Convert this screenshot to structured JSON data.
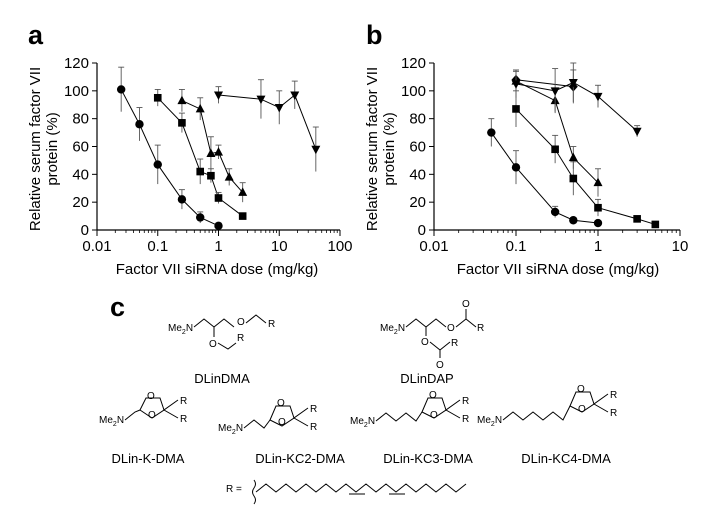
{
  "figure": {
    "panel_letters": [
      "a",
      "b",
      "c"
    ]
  },
  "chart_data": [
    {
      "type": "scatter",
      "panel": "a",
      "xlabel": "Factor VII siRNA dose (mg/kg)",
      "ylabel": "Relative serum factor VII protein (%)",
      "ylabel_lines": [
        "Relative serum factor VII",
        "protein (%)"
      ],
      "xscale": "log",
      "xlim": [
        0.01,
        100
      ],
      "ylim": [
        0,
        120
      ],
      "x_ticks": [
        0.01,
        0.1,
        1,
        10,
        100
      ],
      "x_tick_labels": [
        "0.01",
        "0.1",
        "1",
        "10",
        "100"
      ],
      "y_ticks": [
        0,
        20,
        40,
        60,
        80,
        100,
        120
      ],
      "y_tick_labels": [
        "0",
        "20",
        "40",
        "60",
        "80",
        "100",
        "120"
      ],
      "grid": false,
      "series": [
        {
          "marker": "circle",
          "x": [
            0.025,
            0.05,
            0.1,
            0.25,
            0.5,
            1.0
          ],
          "y": [
            101,
            76,
            47,
            22,
            9,
            3
          ],
          "err": [
            16,
            12,
            14,
            7,
            4,
            2
          ]
        },
        {
          "marker": "square",
          "x": [
            0.1,
            0.25,
            0.5,
            0.75,
            1.0,
            2.5
          ],
          "y": [
            95,
            77,
            42,
            39,
            23,
            10
          ],
          "err": [
            6,
            7,
            9,
            5,
            4,
            2
          ]
        },
        {
          "marker": "triangle-up",
          "x": [
            0.25,
            0.5,
            0.75,
            1.0,
            1.5,
            2.5
          ],
          "y": [
            93,
            87,
            55,
            56,
            38,
            27
          ],
          "err": [
            8,
            8,
            12,
            5,
            6,
            7
          ]
        },
        {
          "marker": "triangle-down",
          "x": [
            1.0,
            5.0,
            10.0,
            18.0,
            40.0
          ],
          "y": [
            97,
            94,
            88,
            97,
            58
          ],
          "err": [
            6,
            14,
            12,
            10,
            16
          ]
        }
      ]
    },
    {
      "type": "scatter",
      "panel": "b",
      "xlabel": "Factor VII siRNA dose (mg/kg)",
      "ylabel": "Relative serum factor VII protein (%)",
      "ylabel_lines": [
        "Relative serum factor VII",
        "protein (%)"
      ],
      "xscale": "log",
      "xlim": [
        0.01,
        10
      ],
      "ylim": [
        0,
        120
      ],
      "x_ticks": [
        0.01,
        0.1,
        1,
        10
      ],
      "x_tick_labels": [
        "0.01",
        "0.1",
        "1",
        "10"
      ],
      "y_ticks": [
        0,
        20,
        40,
        60,
        80,
        100,
        120
      ],
      "y_tick_labels": [
        "0",
        "20",
        "40",
        "60",
        "80",
        "100",
        "120"
      ],
      "grid": false,
      "series": [
        {
          "marker": "circle",
          "x": [
            0.05,
            0.1,
            0.3,
            0.5,
            1.0
          ],
          "y": [
            70,
            45,
            13,
            7,
            5
          ],
          "err": [
            10,
            12,
            4,
            2,
            1
          ]
        },
        {
          "marker": "square",
          "x": [
            0.1,
            0.3,
            0.5,
            1.0,
            3.0,
            5.0
          ],
          "y": [
            87,
            58,
            37,
            16,
            8,
            4
          ],
          "err": [
            13,
            10,
            12,
            6,
            2,
            1
          ]
        },
        {
          "marker": "triangle-up",
          "x": [
            0.1,
            0.3,
            0.5,
            1.0
          ],
          "y": [
            107,
            93,
            52,
            34
          ],
          "err": [
            8,
            8,
            8,
            10
          ]
        },
        {
          "marker": "diamond",
          "x": [
            0.1,
            0.5
          ],
          "y": [
            108,
            103
          ],
          "err": [
            6,
            12
          ]
        },
        {
          "marker": "triangle-down",
          "x": [
            0.1,
            0.3,
            0.5,
            1.0,
            3.0
          ],
          "y": [
            105,
            100,
            106,
            96,
            71
          ],
          "err": [
            10,
            16,
            14,
            8,
            4
          ]
        }
      ]
    }
  ],
  "chemistry": {
    "lipids": [
      "DLinDMA",
      "DLinDAP",
      "DLin-K-DMA",
      "DLin-KC2-DMA",
      "DLin-KC3-DMA",
      "DLin-KC4-DMA"
    ],
    "atoms": {
      "me2n_prefix": "Me",
      "me2n_sub": "2",
      "me2n_suffix": "N",
      "oxygen": "O",
      "r_group": "R",
      "r_definition": "R ="
    }
  }
}
